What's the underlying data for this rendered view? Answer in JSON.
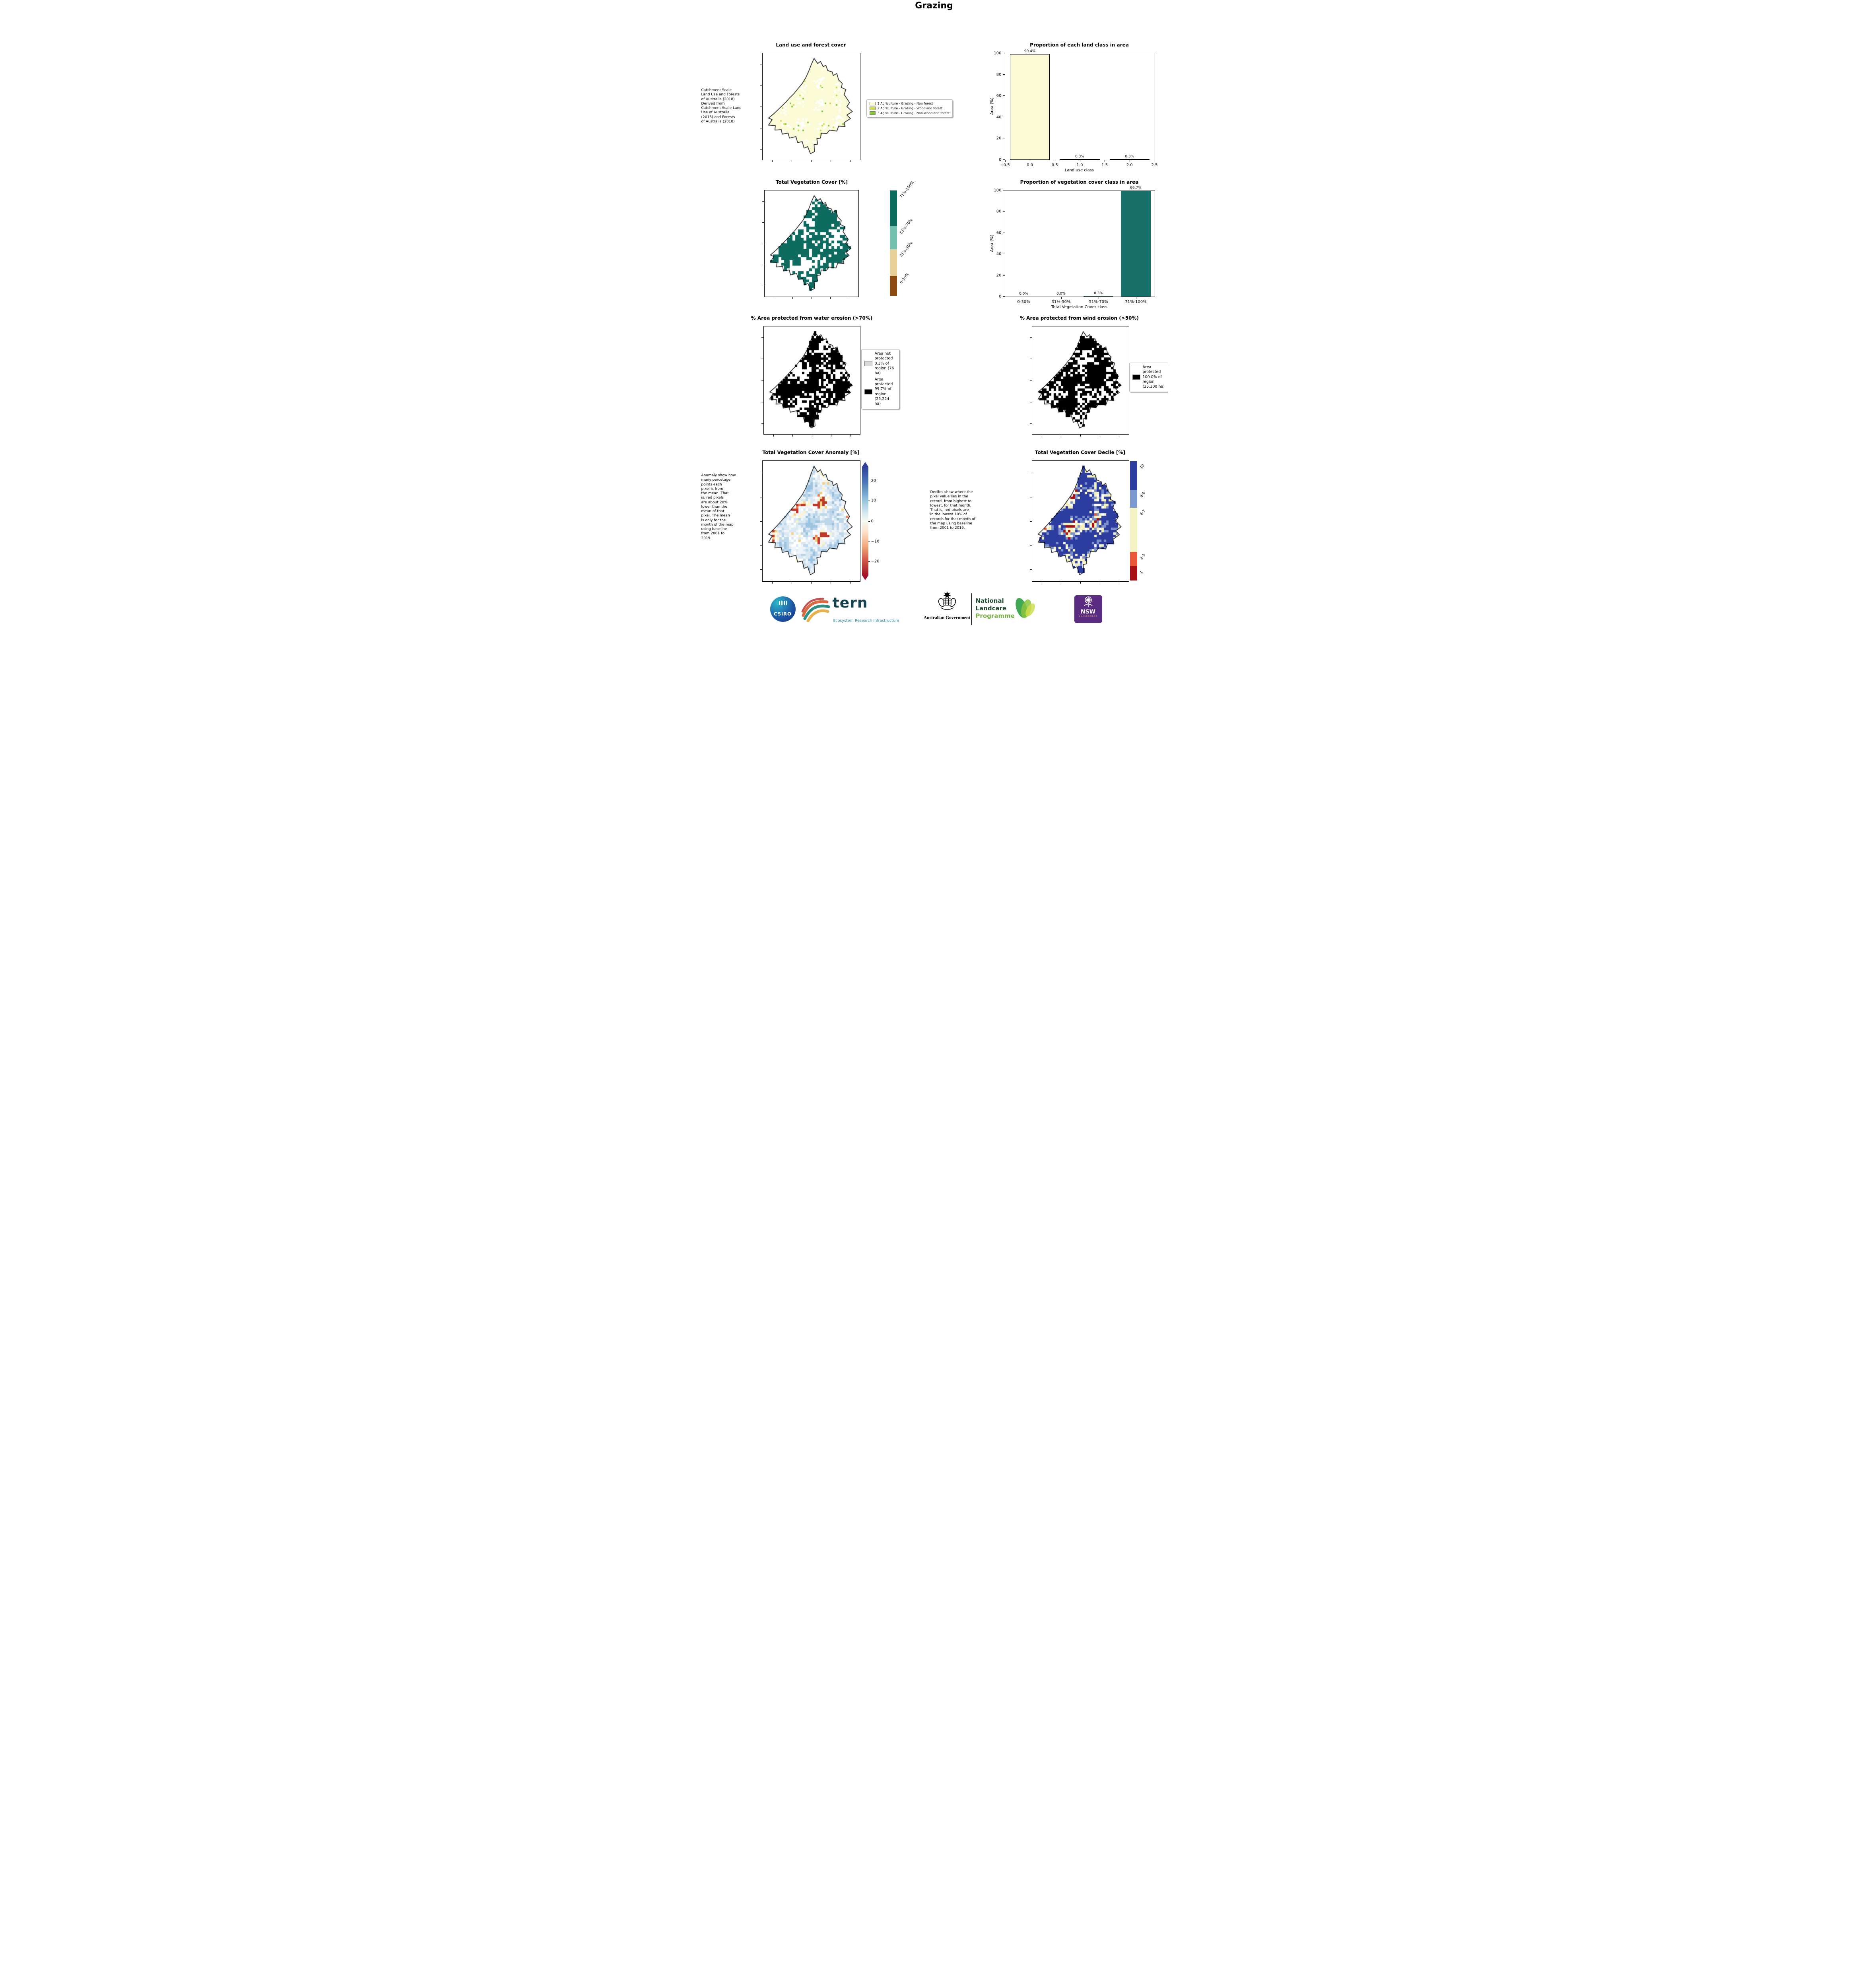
{
  "page": {
    "title": "Grazing"
  },
  "land_use": {
    "title": "Land use and forest cover",
    "side_note": " Catchment Scale\nLand Use and Forests\nof Australia (2018)\nDerived from\nCatchment Scale Land\nUse of Australia\n(2018) and Forests\nof Australia (2018)",
    "legend": [
      {
        "label": "1 Agriculture - Grazing - Non forest",
        "color": "#fbfbd8"
      },
      {
        "label": "2 Agriculture - Grazing - Woodland forest",
        "color": "#cddd55"
      },
      {
        "label": "3 Agriculture - Grazing - Non-woodland forest",
        "color": "#8fc83e"
      }
    ],
    "map": {
      "seed": 3,
      "cell": 4,
      "jitter": 0.9,
      "stops": [
        [
          0.02,
          "#ffffff"
        ],
        [
          0.035,
          "#8fc83e"
        ],
        [
          0.05,
          "#cddd55"
        ],
        [
          0.12,
          "#ffffff"
        ],
        [
          1.01,
          "#fbfbd8"
        ]
      ]
    }
  },
  "veg_cover": {
    "title": "Total Vegetation Cover [%]",
    "colorbar": [
      {
        "label": "71%-100%",
        "color": "#0d6b60",
        "size": 34
      },
      {
        "label": "51%-70%",
        "color": "#74c0ae",
        "size": 22
      },
      {
        "label": "31%-50%",
        "color": "#e6d098",
        "size": 25
      },
      {
        "label": "0-30%",
        "color": "#8a4a10",
        "size": 19
      }
    ],
    "map": {
      "seed": 7,
      "cell": 7,
      "jitter": 0.9,
      "stops": [
        [
          0.3,
          "#ffffff"
        ],
        [
          1.01,
          "#0d6b60"
        ]
      ]
    }
  },
  "water_erosion": {
    "title": "% Area protected from water erosion (>70%)",
    "legend": [
      {
        "label": "Area not protected 0.3% of region (76 ha)",
        "color": "#d9d9d9"
      },
      {
        "label": "Area protected 99.7% of region (25,224 ha)",
        "color": "#000000"
      }
    ],
    "map": {
      "seed": 12,
      "cell": 6,
      "jitter": 0.9,
      "stops": [
        [
          0.33,
          "#ffffff"
        ],
        [
          1.01,
          "#000000"
        ]
      ]
    }
  },
  "wind_erosion": {
    "title": "% Area protected from wind erosion (>50%)",
    "legend": [
      {
        "label": "Area protected 100.0% of region (25,300 ha)",
        "color": "#000000"
      }
    ],
    "map": {
      "seed": 19,
      "cell": 6,
      "jitter": 0.9,
      "stops": [
        [
          0.3,
          "#ffffff"
        ],
        [
          1.01,
          "#000000"
        ]
      ]
    }
  },
  "anomaly": {
    "title": "Total Vegetation Cover Anomaly [%]",
    "side_note": "Anomaly show how\nmany percetage\npoints each\npixel is from\nthe mean. That\nis, red pixels\nare about 20%\nlower than the\nmean of that\npixel. The mean\nis only for the\nmonth of the map\nusing baseline\nfrom 2001 to\n2019.",
    "colorbar_ticks": [
      {
        "label": "20",
        "pos": 0.13
      },
      {
        "label": "10",
        "pos": 0.31
      },
      {
        "label": "0",
        "pos": 0.5
      },
      {
        "label": "−10",
        "pos": 0.69
      },
      {
        "label": "−20",
        "pos": 0.87
      }
    ],
    "map": {
      "seed": 27,
      "cell": 6,
      "jitter": 0.55,
      "stops": [
        [
          0.05,
          "#c0392b"
        ],
        [
          0.08,
          "#ec8254"
        ],
        [
          0.12,
          "#f6cf7d"
        ],
        [
          0.19,
          "#fdf3c4"
        ],
        [
          0.3,
          "#ffffff"
        ],
        [
          0.48,
          "#eef4f8"
        ],
        [
          0.66,
          "#d9e8f2"
        ],
        [
          0.84,
          "#bcd7ea"
        ],
        [
          1.01,
          "#9cc4e0"
        ]
      ]
    }
  },
  "decile": {
    "title": "Total Vegetation Cover Decile [%]",
    "side_note": "Deciles show where the\npixel value lies in the\nrecord, from highest to\nlowest, for that month.\nThat is, red pixels are\nin the lowest 10% of\nrecords for that month of\nthe map using baseline\nfrom 2001 to 2019.",
    "colorbar": [
      {
        "label": "10",
        "color": "#2c3d9f",
        "size": 24
      },
      {
        "label": "8-9",
        "color": "#7b9ad0",
        "size": 15
      },
      {
        "label": "4-7",
        "color": "#f5f2c3",
        "size": 37
      },
      {
        "label": "2-3",
        "color": "#e8593b",
        "size": 12
      },
      {
        "label": "1",
        "color": "#a50f15",
        "size": 12
      }
    ],
    "map": {
      "seed": 31,
      "cell": 6,
      "jitter": 0.55,
      "stops": [
        [
          0.05,
          "#a50f15"
        ],
        [
          0.085,
          "#e8593b"
        ],
        [
          0.16,
          "#f4f1bf"
        ],
        [
          0.25,
          "#ffffff"
        ],
        [
          0.35,
          "#f4f1bf"
        ],
        [
          0.45,
          "#7b90cb"
        ],
        [
          1.01,
          "#2c3d9f"
        ]
      ]
    }
  },
  "chart_data": [
    {
      "type": "bar",
      "title": "Proportion of each land class in area",
      "xlabel": "Land use class",
      "ylabel": "Area (%)",
      "x": [
        0,
        1,
        2
      ],
      "values": [
        99.4,
        0.3,
        0.3
      ],
      "bar_labels": [
        "99.4%",
        "0.3%",
        "0.3%"
      ],
      "xlim": [
        -0.5,
        2.5
      ],
      "ylim": [
        0,
        100
      ],
      "xticks": [
        "−0.5",
        "0.0",
        "0.5",
        "1.0",
        "1.5",
        "2.0",
        "2.5"
      ],
      "yticks": [
        0,
        20,
        40,
        60,
        80,
        100
      ],
      "bar_color": "#fbfbd8",
      "bar_edge": "#000000",
      "legend_position": "none",
      "grid": false
    },
    {
      "type": "bar",
      "title": "Proportion of vegetation cover class in area",
      "xlabel": "Total Vegetation Cover class",
      "ylabel": "Area (%)",
      "categories": [
        "0-30%",
        "31%-50%",
        "51%-70%",
        "71%-100%"
      ],
      "values": [
        0.0,
        0.0,
        0.3,
        99.7
      ],
      "bar_labels": [
        "0.0%",
        "0.0%",
        "0.3%",
        "99.7%"
      ],
      "ylim": [
        0,
        100
      ],
      "yticks": [
        0,
        20,
        40,
        60,
        80,
        100
      ],
      "bar_color": "#17706a",
      "bar_edge": null,
      "legend_position": "none",
      "grid": false
    }
  ],
  "footer": {
    "csiro_label": "CSIRO",
    "tern_label": "tern",
    "tern_sub": "Ecosystem Research Infrastructure",
    "ausgov_label": "Australian Government",
    "landcare1": "National",
    "landcare2": "Landcare",
    "landcare3": "Programme",
    "nsw_label": "NSW",
    "nsw_sub": "GOVERNMENT"
  }
}
